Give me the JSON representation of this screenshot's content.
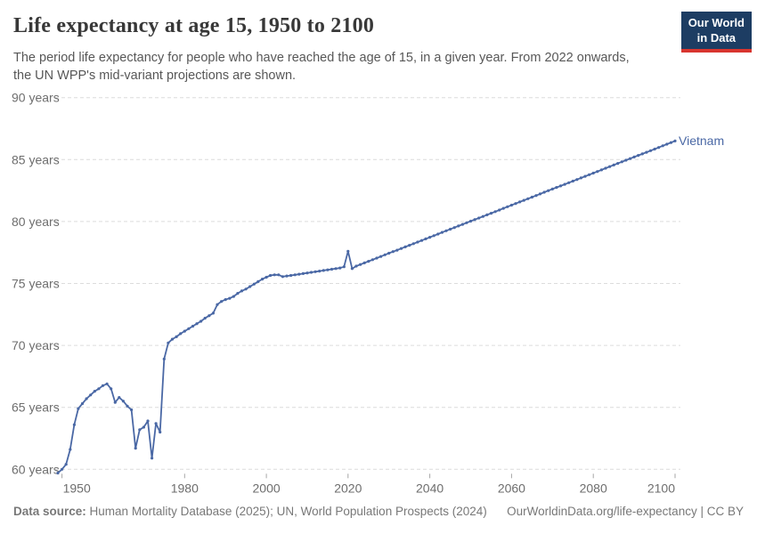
{
  "header": {
    "title": "Life expectancy at age 15, 1950 to 2100",
    "subtitle": "The period life expectancy for people who have reached the age of 15, in a given year. From 2022 onwards,\nthe UN WPP's mid-variant projections are shown.",
    "logo": {
      "line1": "Our World",
      "line2": "in Data"
    }
  },
  "colors": {
    "logo_navy": "#1d3d63",
    "logo_red": "#d8352f",
    "line": "#4a68a5",
    "grid": "#dcdcdc",
    "axis_text": "#6e6e6e"
  },
  "chart_data": {
    "type": "line",
    "title": "Life expectancy at age 15, 1950 to 2100",
    "entity": "Vietnam",
    "series_label": "Vietnam",
    "unit": "years",
    "xlabel": "",
    "ylabel": "",
    "xlim": [
      1949,
      2100
    ],
    "ylim": [
      60,
      90
    ],
    "grid": "horizontal-dashed",
    "legend_position": "end-of-line-label",
    "markers": true,
    "line_color": "#4a68a5",
    "projection_note": "Values from 2022 onwards are UN WPP mid-variant projections",
    "y_ticks": [
      {
        "value": 60,
        "label": "60 years"
      },
      {
        "value": 65,
        "label": "65 years"
      },
      {
        "value": 70,
        "label": "70 years"
      },
      {
        "value": 75,
        "label": "75 years"
      },
      {
        "value": 80,
        "label": "80 years"
      },
      {
        "value": 85,
        "label": "85 years"
      },
      {
        "value": 90,
        "label": "90 years"
      }
    ],
    "x_ticks": [
      {
        "value": 1950,
        "label": "1950"
      },
      {
        "value": 1980,
        "label": "1980"
      },
      {
        "value": 2000,
        "label": "2000"
      },
      {
        "value": 2020,
        "label": "2020"
      },
      {
        "value": 2040,
        "label": "2040"
      },
      {
        "value": 2060,
        "label": "2060"
      },
      {
        "value": 2080,
        "label": "2080"
      },
      {
        "value": 2100,
        "label": "2100"
      }
    ],
    "points": [
      [
        1949,
        59.7
      ],
      [
        1950,
        60.0
      ],
      [
        1951,
        60.4
      ],
      [
        1952,
        61.6
      ],
      [
        1953,
        63.6
      ],
      [
        1954,
        64.9
      ],
      [
        1955,
        65.3
      ],
      [
        1956,
        65.7
      ],
      [
        1957,
        66.0
      ],
      [
        1958,
        66.3
      ],
      [
        1959,
        66.5
      ],
      [
        1960,
        66.75
      ],
      [
        1961,
        66.9
      ],
      [
        1962,
        66.5
      ],
      [
        1963,
        65.4
      ],
      [
        1964,
        65.8
      ],
      [
        1965,
        65.5
      ],
      [
        1966,
        65.1
      ],
      [
        1967,
        64.8
      ],
      [
        1968,
        61.7
      ],
      [
        1969,
        63.2
      ],
      [
        1970,
        63.4
      ],
      [
        1971,
        63.9
      ],
      [
        1972,
        60.9
      ],
      [
        1973,
        63.7
      ],
      [
        1974,
        63.0
      ],
      [
        1975,
        68.9
      ],
      [
        1976,
        70.2
      ],
      [
        1977,
        70.5
      ],
      [
        1978,
        70.7
      ],
      [
        1979,
        70.95
      ],
      [
        1980,
        71.15
      ],
      [
        1981,
        71.35
      ],
      [
        1982,
        71.55
      ],
      [
        1983,
        71.75
      ],
      [
        1984,
        71.95
      ],
      [
        1985,
        72.2
      ],
      [
        1986,
        72.4
      ],
      [
        1987,
        72.6
      ],
      [
        1988,
        73.3
      ],
      [
        1989,
        73.55
      ],
      [
        1990,
        73.7
      ],
      [
        1991,
        73.8
      ],
      [
        1992,
        73.95
      ],
      [
        1993,
        74.2
      ],
      [
        1994,
        74.4
      ],
      [
        1995,
        74.55
      ],
      [
        1996,
        74.75
      ],
      [
        1997,
        74.95
      ],
      [
        1998,
        75.15
      ],
      [
        1999,
        75.35
      ],
      [
        2000,
        75.5
      ],
      [
        2001,
        75.65
      ],
      [
        2002,
        75.7
      ],
      [
        2003,
        75.7
      ],
      [
        2004,
        75.55
      ],
      [
        2005,
        75.6
      ],
      [
        2006,
        75.65
      ],
      [
        2007,
        75.7
      ],
      [
        2008,
        75.75
      ],
      [
        2009,
        75.8
      ],
      [
        2010,
        75.85
      ],
      [
        2011,
        75.9
      ],
      [
        2012,
        75.95
      ],
      [
        2013,
        76.0
      ],
      [
        2014,
        76.05
      ],
      [
        2015,
        76.1
      ],
      [
        2016,
        76.15
      ],
      [
        2017,
        76.2
      ],
      [
        2018,
        76.25
      ],
      [
        2019,
        76.35
      ],
      [
        2020,
        77.6
      ],
      [
        2021,
        76.2
      ],
      [
        2022,
        76.4
      ],
      [
        2023,
        76.53
      ],
      [
        2024,
        76.66
      ],
      [
        2025,
        76.79
      ],
      [
        2026,
        76.92
      ],
      [
        2027,
        77.05
      ],
      [
        2028,
        77.18
      ],
      [
        2029,
        77.31
      ],
      [
        2030,
        77.44
      ],
      [
        2031,
        77.57
      ],
      [
        2032,
        77.69
      ],
      [
        2033,
        77.82
      ],
      [
        2034,
        77.95
      ],
      [
        2035,
        78.08
      ],
      [
        2036,
        78.21
      ],
      [
        2037,
        78.34
      ],
      [
        2038,
        78.47
      ],
      [
        2039,
        78.6
      ],
      [
        2040,
        78.73
      ],
      [
        2041,
        78.86
      ],
      [
        2042,
        78.99
      ],
      [
        2043,
        79.12
      ],
      [
        2044,
        79.25
      ],
      [
        2045,
        79.38
      ],
      [
        2046,
        79.51
      ],
      [
        2047,
        79.64
      ],
      [
        2048,
        79.77
      ],
      [
        2049,
        79.9
      ],
      [
        2050,
        80.03
      ],
      [
        2051,
        80.16
      ],
      [
        2052,
        80.28
      ],
      [
        2053,
        80.41
      ],
      [
        2054,
        80.54
      ],
      [
        2055,
        80.67
      ],
      [
        2056,
        80.8
      ],
      [
        2057,
        80.93
      ],
      [
        2058,
        81.06
      ],
      [
        2059,
        81.19
      ],
      [
        2060,
        81.32
      ],
      [
        2061,
        81.45
      ],
      [
        2062,
        81.58
      ],
      [
        2063,
        81.71
      ],
      [
        2064,
        81.84
      ],
      [
        2065,
        81.97
      ],
      [
        2066,
        82.1
      ],
      [
        2067,
        82.23
      ],
      [
        2068,
        82.36
      ],
      [
        2069,
        82.49
      ],
      [
        2070,
        82.62
      ],
      [
        2071,
        82.75
      ],
      [
        2072,
        82.87
      ],
      [
        2073,
        83.0
      ],
      [
        2074,
        83.13
      ],
      [
        2075,
        83.26
      ],
      [
        2076,
        83.39
      ],
      [
        2077,
        83.52
      ],
      [
        2078,
        83.65
      ],
      [
        2079,
        83.78
      ],
      [
        2080,
        83.91
      ],
      [
        2081,
        84.04
      ],
      [
        2082,
        84.17
      ],
      [
        2083,
        84.3
      ],
      [
        2084,
        84.43
      ],
      [
        2085,
        84.56
      ],
      [
        2086,
        84.69
      ],
      [
        2087,
        84.82
      ],
      [
        2088,
        84.95
      ],
      [
        2089,
        85.08
      ],
      [
        2090,
        85.21
      ],
      [
        2091,
        85.34
      ],
      [
        2092,
        85.46
      ],
      [
        2093,
        85.59
      ],
      [
        2094,
        85.72
      ],
      [
        2095,
        85.85
      ],
      [
        2096,
        85.98
      ],
      [
        2097,
        86.11
      ],
      [
        2098,
        86.24
      ],
      [
        2099,
        86.37
      ],
      [
        2100,
        86.5
      ]
    ]
  },
  "footer": {
    "source_label": "Data source:",
    "source_text": "Human Mortality Database (2025); UN, World Population Prospects (2024)",
    "link": "OurWorldinData.org/life-expectancy",
    "separator": " | ",
    "license": "CC BY"
  }
}
